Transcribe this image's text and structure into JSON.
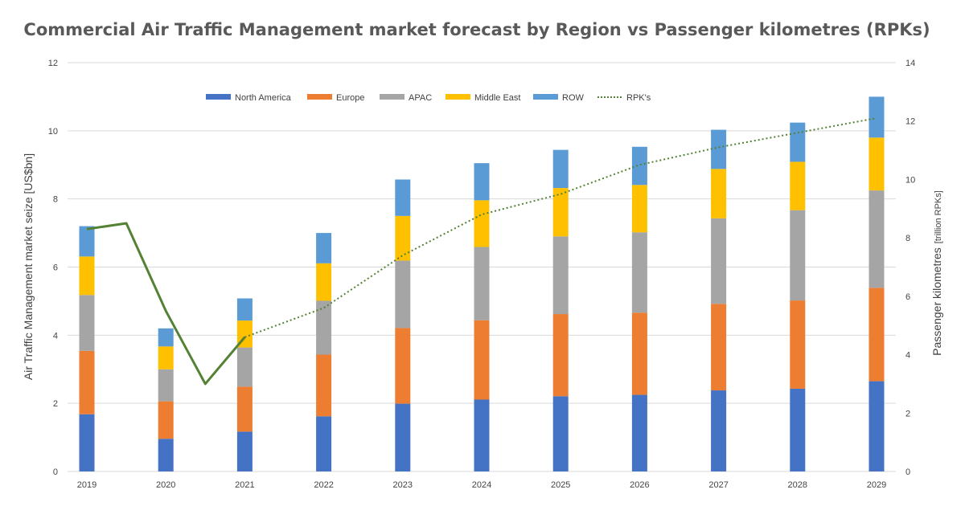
{
  "chart_data": {
    "type": "bar",
    "stacked": true,
    "title": "Commercial Air Traffic Management market forecast by Region vs Passenger kilometres (RPKs)",
    "ylabel": "Air Traffic Management  market seize [US$bn]",
    "ylabel2_main": "Passenger kilometres",
    "ylabel2_unit": "[trillion RPKs]",
    "ylim": [
      0,
      12
    ],
    "y_ticks": [
      "0",
      "2",
      "4",
      "6",
      "8",
      "10",
      "12"
    ],
    "y2lim": [
      0,
      14
    ],
    "y2_ticks": [
      "0",
      "2",
      "4",
      "6",
      "8",
      "10",
      "12",
      "14"
    ],
    "categories": [
      "2019",
      "2020",
      "2021",
      "2022",
      "2023",
      "2024",
      "2025",
      "2026",
      "2027",
      "2028",
      "2029"
    ],
    "series": [
      {
        "name": "North America",
        "color": "#4472C4",
        "values": [
          1.68,
          0.96,
          1.17,
          1.62,
          1.99,
          2.11,
          2.21,
          2.25,
          2.38,
          2.43,
          2.65
        ]
      },
      {
        "name": "Europe",
        "color": "#ED7D31",
        "values": [
          1.86,
          1.1,
          1.32,
          1.81,
          2.22,
          2.33,
          2.41,
          2.41,
          2.54,
          2.59,
          2.74
        ]
      },
      {
        "name": "APAC",
        "color": "#A5A5A5",
        "values": [
          1.64,
          0.94,
          1.15,
          1.58,
          1.98,
          2.15,
          2.28,
          2.36,
          2.51,
          2.65,
          2.86
        ]
      },
      {
        "name": "Middle East",
        "color": "#FFC000",
        "values": [
          1.13,
          0.67,
          0.79,
          1.1,
          1.31,
          1.37,
          1.42,
          1.39,
          1.45,
          1.42,
          1.55
        ]
      },
      {
        "name": "ROW",
        "color": "#5B9BD5",
        "values": [
          0.89,
          0.53,
          0.65,
          0.89,
          1.07,
          1.09,
          1.12,
          1.12,
          1.15,
          1.15,
          1.2
        ]
      }
    ],
    "line_series": {
      "name": "RPK's",
      "color": "#548235",
      "axis": "secondary",
      "actual": {
        "x": [
          2019,
          2019.5,
          2020,
          2020.5,
          2021
        ],
        "y": [
          8.3,
          8.5,
          5.5,
          3.0,
          4.6
        ]
      },
      "forecast": {
        "x": [
          2021,
          2022,
          2023,
          2024,
          2025,
          2026,
          2027,
          2028,
          2029
        ],
        "y": [
          4.6,
          5.6,
          7.4,
          8.8,
          9.5,
          10.5,
          11.1,
          11.6,
          12.1
        ]
      }
    },
    "legend": {
      "placement": "top-center",
      "entries": [
        "North America",
        "Europe",
        "APAC",
        "Middle East",
        "ROW",
        "RPK's"
      ]
    },
    "grid": true
  }
}
